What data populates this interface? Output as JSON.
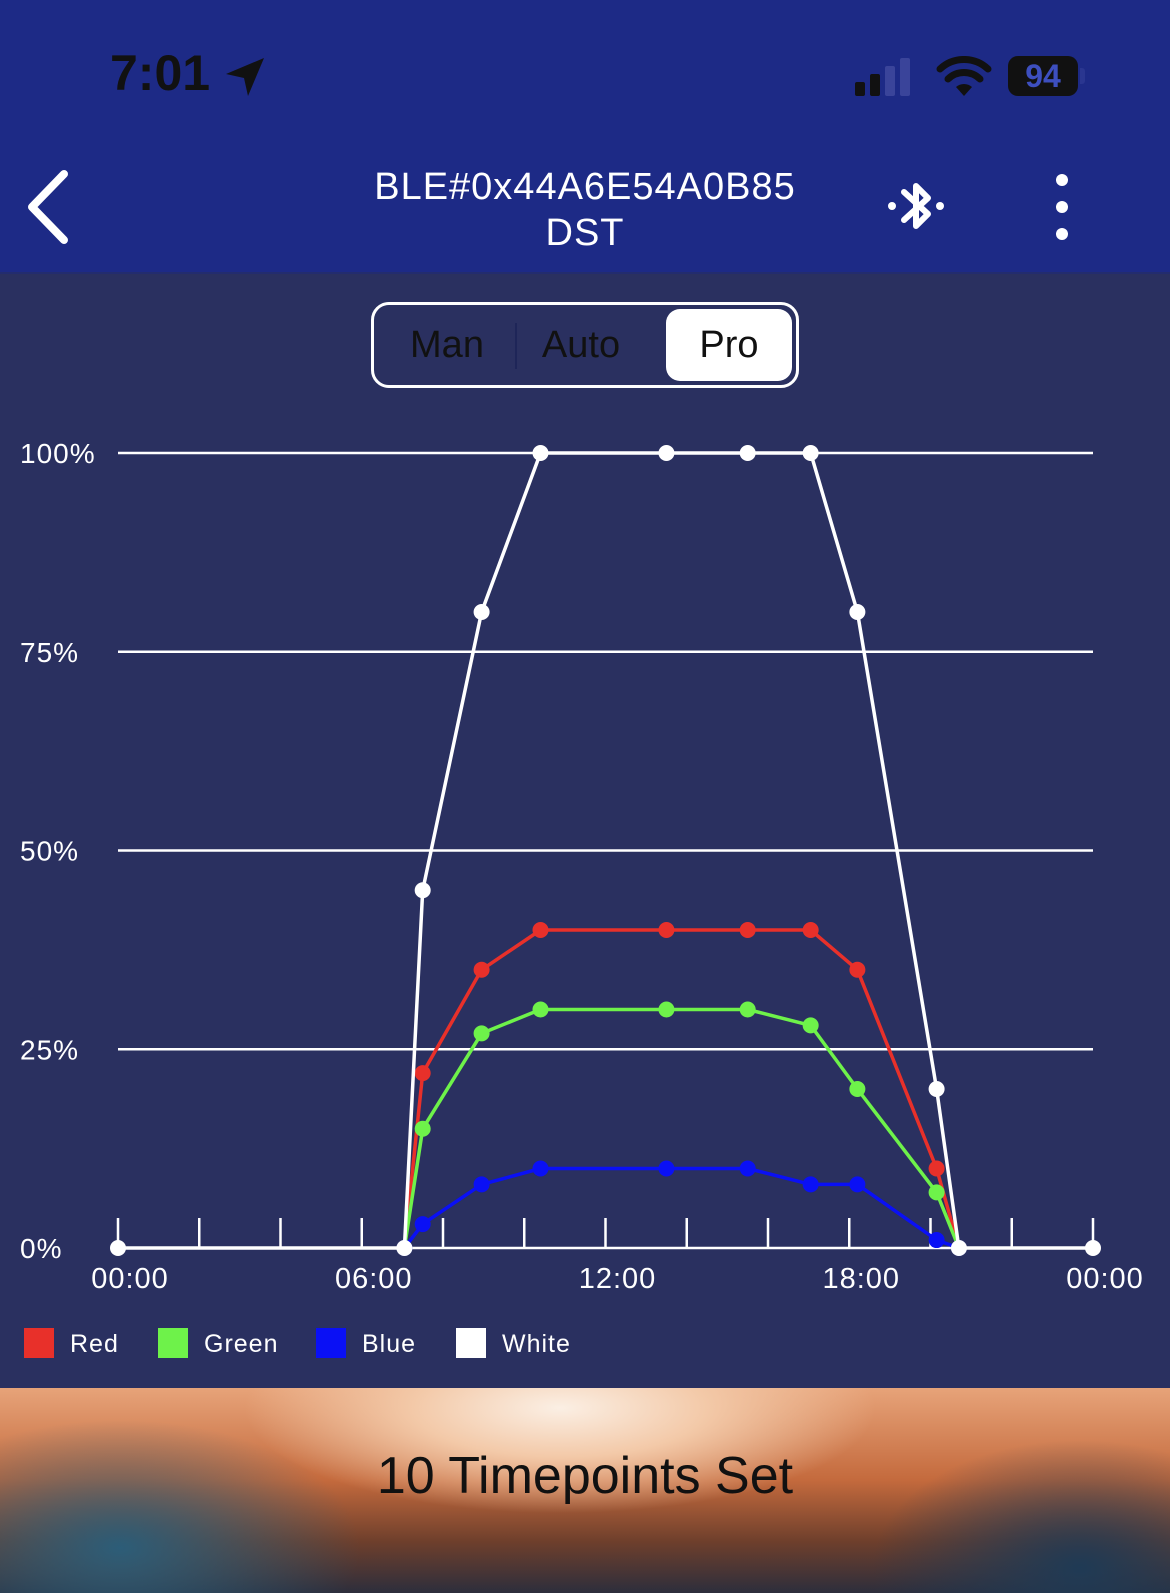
{
  "status_bar": {
    "time": "7:01",
    "battery": "94"
  },
  "header": {
    "title_line1": "BLE#0x44A6E54A0B85",
    "title_line2": "DST"
  },
  "modes": {
    "man": "Man",
    "auto": "Auto",
    "pro": "Pro",
    "selected": "Pro"
  },
  "colors": {
    "bar": "#1d2a86",
    "background": "#2a3060",
    "red": "#e8302a",
    "green": "#6ef24a",
    "blue": "#0a10f5",
    "white": "#ffffff"
  },
  "chart_data": {
    "type": "line",
    "x_unit": "time of day (hours)",
    "x_ticks": [
      "00:00",
      "06:00",
      "12:00",
      "18:00",
      "00:00"
    ],
    "x_tick_values": [
      0,
      6,
      12,
      18,
      24
    ],
    "y_ticks": [
      "0%",
      "25%",
      "50%",
      "75%",
      "100%"
    ],
    "y_tick_values": [
      0,
      25,
      50,
      75,
      100
    ],
    "xlim": [
      0,
      24
    ],
    "ylim": [
      0,
      100
    ],
    "grid": "horizontal",
    "legend_position": "bottom-left",
    "series": [
      {
        "name": "Red",
        "color": "#e8302a",
        "points": [
          [
            7.05,
            0
          ],
          [
            7.5,
            22
          ],
          [
            8.95,
            35
          ],
          [
            10.4,
            40
          ],
          [
            13.5,
            40
          ],
          [
            15.5,
            40
          ],
          [
            17.05,
            40
          ],
          [
            18.2,
            35
          ],
          [
            20.15,
            10
          ],
          [
            20.7,
            0
          ]
        ]
      },
      {
        "name": "Green",
        "color": "#6ef24a",
        "points": [
          [
            7.05,
            0
          ],
          [
            7.5,
            15
          ],
          [
            8.95,
            27
          ],
          [
            10.4,
            30
          ],
          [
            13.5,
            30
          ],
          [
            15.5,
            30
          ],
          [
            17.05,
            28
          ],
          [
            18.2,
            20
          ],
          [
            20.15,
            7
          ],
          [
            20.7,
            0
          ]
        ]
      },
      {
        "name": "Blue",
        "color": "#0a10f5",
        "points": [
          [
            7.05,
            0
          ],
          [
            7.5,
            3
          ],
          [
            8.95,
            8
          ],
          [
            10.4,
            10
          ],
          [
            13.5,
            10
          ],
          [
            15.5,
            10
          ],
          [
            17.05,
            8
          ],
          [
            18.2,
            8
          ],
          [
            20.15,
            1
          ],
          [
            20.7,
            0
          ]
        ]
      },
      {
        "name": "White",
        "color": "#ffffff",
        "points": [
          [
            0,
            0
          ],
          [
            7.05,
            0
          ],
          [
            7.5,
            45
          ],
          [
            8.95,
            80
          ],
          [
            10.4,
            100
          ],
          [
            13.5,
            100
          ],
          [
            15.5,
            100
          ],
          [
            17.05,
            100
          ],
          [
            18.2,
            80
          ],
          [
            20.15,
            20
          ],
          [
            20.7,
            0
          ],
          [
            24,
            0
          ]
        ]
      }
    ]
  },
  "footer": {
    "text": "10 Timepoints Set"
  }
}
